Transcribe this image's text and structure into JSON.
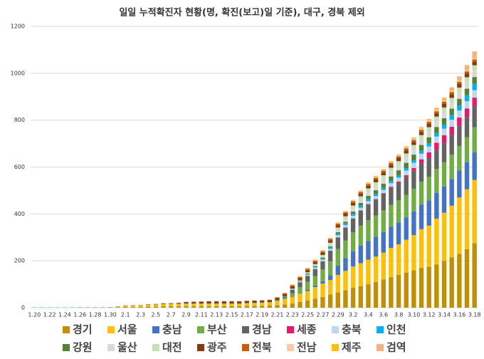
{
  "chart_data": {
    "type": "stacked_bar",
    "title": "일일 누적확진자 현황(명, 확진(보고)일 기준), 대구, 경북 제외",
    "categories": [
      "1.20",
      null,
      "1.22",
      null,
      "1.24",
      null,
      "1.26",
      null,
      "1.28",
      null,
      "1.30",
      null,
      "2.1",
      null,
      "2.3",
      null,
      "2.5",
      null,
      "2.7",
      null,
      "2.9",
      null,
      "2.11",
      null,
      "2.13",
      null,
      "2.15",
      null,
      "2.17",
      null,
      "2.19",
      null,
      "2.21",
      null,
      "2.23",
      null,
      "2.25",
      null,
      "2.27",
      null,
      "2.29",
      null,
      "3.2",
      null,
      "3.4",
      null,
      "3.6",
      null,
      "3.8",
      null,
      "3.10",
      null,
      "3.12",
      null,
      "3.14",
      null,
      "3.16",
      null,
      "3.18"
    ],
    "ylim": [
      0,
      1200
    ],
    "yticks": [
      0,
      200,
      400,
      600,
      800,
      1000,
      1200
    ],
    "grid": true,
    "legend": "bottom",
    "series": [
      {
        "name": "경기",
        "color": "#bf9000",
        "values": [
          0,
          0,
          0,
          0,
          0,
          0,
          1,
          1,
          1,
          1,
          1,
          2,
          3,
          4,
          4,
          5,
          5,
          6,
          6,
          6,
          7,
          7,
          7,
          7,
          7,
          7,
          7,
          7,
          8,
          8,
          8,
          9,
          11,
          14,
          18,
          25,
          31,
          38,
          46,
          56,
          65,
          75,
          85,
          92,
          100,
          110,
          120,
          130,
          140,
          150,
          160,
          170,
          175,
          185,
          200,
          215,
          230,
          250,
          275
        ]
      },
      {
        "name": "서울",
        "color": "#ffc000",
        "values": [
          0,
          0,
          0,
          0,
          0,
          0,
          0,
          0,
          0,
          0,
          1,
          2,
          5,
          5,
          6,
          7,
          8,
          9,
          10,
          10,
          10,
          10,
          10,
          10,
          10,
          10,
          10,
          10,
          11,
          12,
          13,
          14,
          17,
          22,
          28,
          35,
          40,
          50,
          57,
          62,
          75,
          82,
          91,
          98,
          105,
          108,
          115,
          125,
          130,
          140,
          150,
          165,
          175,
          195,
          205,
          220,
          240,
          255,
          270
        ]
      },
      {
        "name": "충남",
        "color": "#4472c4",
        "values": [
          0,
          0,
          0,
          0,
          0,
          0,
          0,
          0,
          0,
          0,
          0,
          0,
          0,
          0,
          0,
          0,
          0,
          0,
          0,
          0,
          0,
          0,
          0,
          0,
          0,
          0,
          0,
          0,
          0,
          0,
          0,
          0,
          0,
          1,
          1,
          3,
          5,
          7,
          10,
          20,
          40,
          55,
          65,
          75,
          80,
          85,
          88,
          90,
          93,
          95,
          100,
          104,
          108,
          110,
          112,
          114,
          115,
          116,
          118
        ]
      },
      {
        "name": "부산",
        "color": "#70ad47",
        "values": [
          0,
          0,
          0,
          0,
          0,
          0,
          0,
          0,
          0,
          0,
          0,
          0,
          0,
          0,
          0,
          0,
          0,
          0,
          0,
          0,
          0,
          0,
          0,
          0,
          0,
          0,
          0,
          0,
          0,
          0,
          0,
          0,
          2,
          5,
          15,
          25,
          35,
          40,
          50,
          60,
          70,
          75,
          80,
          85,
          88,
          90,
          92,
          94,
          95,
          96,
          97,
          98,
          100,
          102,
          103,
          104,
          105,
          106,
          107
        ]
      },
      {
        "name": "경남",
        "color": "#636363",
        "values": [
          0,
          0,
          0,
          0,
          0,
          0,
          0,
          0,
          0,
          0,
          0,
          0,
          0,
          0,
          0,
          0,
          0,
          0,
          0,
          0,
          0,
          0,
          0,
          0,
          0,
          0,
          0,
          0,
          0,
          0,
          0,
          0,
          1,
          5,
          15,
          20,
          25,
          30,
          35,
          45,
          50,
          55,
          60,
          65,
          68,
          70,
          72,
          74,
          75,
          76,
          77,
          78,
          80,
          82,
          83,
          84,
          85,
          86,
          88
        ]
      },
      {
        "name": "세종",
        "color": "#e8196c",
        "values": [
          0,
          0,
          0,
          0,
          0,
          0,
          0,
          0,
          0,
          0,
          0,
          0,
          0,
          0,
          0,
          0,
          0,
          0,
          0,
          0,
          0,
          0,
          0,
          0,
          0,
          0,
          0,
          0,
          0,
          0,
          0,
          0,
          0,
          0,
          0,
          0,
          0,
          0,
          0,
          0,
          0,
          0,
          0,
          0,
          1,
          1,
          2,
          3,
          5,
          8,
          12,
          18,
          25,
          30,
          33,
          35,
          36,
          37,
          38
        ]
      },
      {
        "name": "충북",
        "color": "#bdd7ee",
        "values": [
          0,
          0,
          0,
          0,
          0,
          0,
          0,
          0,
          0,
          0,
          0,
          0,
          0,
          0,
          0,
          0,
          0,
          0,
          0,
          0,
          0,
          0,
          0,
          0,
          0,
          0,
          0,
          0,
          0,
          0,
          0,
          0,
          0,
          1,
          2,
          3,
          5,
          6,
          7,
          8,
          9,
          10,
          11,
          11,
          12,
          12,
          13,
          15,
          17,
          20,
          22,
          24,
          25,
          26,
          28,
          30,
          30,
          31,
          32
        ]
      },
      {
        "name": "인천",
        "color": "#00b0f0",
        "values": [
          1,
          1,
          1,
          1,
          1,
          1,
          1,
          1,
          1,
          1,
          1,
          1,
          1,
          1,
          1,
          1,
          1,
          1,
          1,
          1,
          1,
          1,
          1,
          1,
          1,
          1,
          1,
          1,
          1,
          1,
          1,
          1,
          1,
          1,
          1,
          1,
          2,
          3,
          4,
          5,
          6,
          7,
          8,
          9,
          9,
          9,
          9,
          9,
          9,
          10,
          11,
          12,
          13,
          15,
          17,
          20,
          22,
          25,
          27
        ]
      },
      {
        "name": "강원",
        "color": "#548235",
        "values": [
          0,
          0,
          0,
          0,
          0,
          0,
          0,
          0,
          0,
          0,
          0,
          0,
          0,
          0,
          0,
          0,
          0,
          0,
          0,
          0,
          0,
          0,
          0,
          0,
          0,
          0,
          0,
          0,
          0,
          0,
          0,
          0,
          0,
          0,
          1,
          2,
          3,
          4,
          5,
          6,
          7,
          8,
          10,
          12,
          14,
          16,
          18,
          20,
          22,
          23,
          24,
          25,
          26,
          26,
          27,
          27,
          28,
          28,
          29
        ]
      },
      {
        "name": "울산",
        "color": "#d9d9d9",
        "values": [
          0,
          0,
          0,
          0,
          0,
          0,
          0,
          0,
          0,
          0,
          0,
          0,
          0,
          0,
          0,
          0,
          0,
          0,
          0,
          0,
          0,
          0,
          0,
          0,
          0,
          0,
          0,
          0,
          0,
          0,
          0,
          0,
          0,
          0,
          0,
          1,
          2,
          3,
          4,
          6,
          8,
          10,
          12,
          14,
          17,
          19,
          20,
          21,
          22,
          23,
          23,
          24,
          25,
          25,
          26,
          26,
          27,
          27,
          28
        ]
      },
      {
        "name": "대전",
        "color": "#c5e0b4",
        "values": [
          0,
          0,
          0,
          0,
          0,
          0,
          0,
          0,
          0,
          0,
          0,
          0,
          0,
          0,
          0,
          0,
          0,
          0,
          0,
          0,
          0,
          0,
          0,
          0,
          0,
          0,
          0,
          0,
          0,
          0,
          0,
          0,
          0,
          0,
          1,
          2,
          3,
          5,
          7,
          9,
          12,
          13,
          14,
          14,
          15,
          15,
          16,
          16,
          17,
          17,
          18,
          18,
          18,
          19,
          20,
          20,
          21,
          22,
          22
        ]
      },
      {
        "name": "광주",
        "color": "#843c0c",
        "values": [
          0,
          0,
          0,
          0,
          0,
          0,
          0,
          0,
          0,
          0,
          0,
          0,
          0,
          0,
          0,
          1,
          1,
          2,
          2,
          3,
          5,
          6,
          7,
          8,
          8,
          8,
          8,
          8,
          8,
          8,
          8,
          8,
          9,
          9,
          9,
          9,
          9,
          9,
          9,
          10,
          10,
          11,
          11,
          11,
          11,
          12,
          12,
          13,
          13,
          13,
          13,
          14,
          14,
          14,
          15,
          15,
          15,
          15,
          15
        ]
      },
      {
        "name": "전북",
        "color": "#c55a11",
        "values": [
          0,
          0,
          0,
          0,
          0,
          0,
          0,
          0,
          0,
          0,
          0,
          1,
          1,
          1,
          1,
          1,
          1,
          1,
          1,
          1,
          2,
          2,
          2,
          2,
          2,
          2,
          2,
          2,
          2,
          2,
          2,
          2,
          3,
          4,
          5,
          5,
          6,
          6,
          7,
          7,
          7,
          7,
          7,
          8,
          8,
          8,
          8,
          8,
          8,
          9,
          9,
          9,
          9,
          9,
          10,
          10,
          10,
          10,
          10
        ]
      },
      {
        "name": "전남",
        "color": "#f8cbad",
        "values": [
          0,
          0,
          0,
          0,
          0,
          0,
          0,
          0,
          0,
          0,
          0,
          0,
          0,
          0,
          0,
          0,
          0,
          0,
          0,
          0,
          0,
          0,
          0,
          0,
          0,
          0,
          0,
          0,
          0,
          0,
          0,
          0,
          0,
          1,
          1,
          2,
          2,
          3,
          3,
          3,
          3,
          3,
          4,
          4,
          4,
          4,
          4,
          4,
          4,
          4,
          4,
          4,
          4,
          4,
          4,
          4,
          4,
          5,
          5
        ]
      },
      {
        "name": "제주",
        "color": "#ffc000",
        "values": [
          0,
          0,
          0,
          0,
          0,
          0,
          0,
          0,
          0,
          0,
          0,
          0,
          0,
          0,
          0,
          0,
          0,
          0,
          0,
          0,
          0,
          0,
          0,
          0,
          0,
          0,
          0,
          0,
          0,
          0,
          0,
          0,
          1,
          1,
          2,
          2,
          2,
          2,
          2,
          2,
          2,
          2,
          2,
          2,
          3,
          3,
          3,
          3,
          3,
          3,
          3,
          3,
          3,
          4,
          4,
          4,
          4,
          4,
          4
        ]
      },
      {
        "name": "검역",
        "color": "#f4b183",
        "values": [
          0,
          0,
          0,
          0,
          0,
          0,
          0,
          0,
          0,
          0,
          0,
          0,
          0,
          0,
          0,
          0,
          0,
          0,
          0,
          0,
          0,
          0,
          0,
          0,
          0,
          0,
          0,
          0,
          0,
          0,
          0,
          0,
          0,
          0,
          0,
          0,
          0,
          0,
          0,
          0,
          0,
          0,
          0,
          0,
          0,
          0,
          0,
          1,
          1,
          2,
          3,
          4,
          5,
          7,
          9,
          12,
          15,
          18,
          25
        ]
      }
    ]
  }
}
